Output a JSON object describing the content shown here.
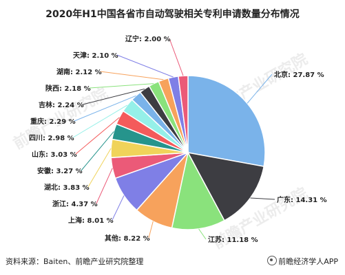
{
  "title": "2020年H1中国各省市自动驾驶相关专利申请数量分布情况",
  "footer": {
    "source": "资料来源：Baiten、前瞻产业研究院整理",
    "brand": "前瞻经济学人APP"
  },
  "watermark": "前瞻产业研究院",
  "chart_data": {
    "type": "pie",
    "title": "2020年H1中国各省市自动驾驶相关专利申请数量分布情况",
    "unit": "%",
    "slices": [
      {
        "label": "北京",
        "value": 27.87,
        "color": "#7ab3ea"
      },
      {
        "label": "广东",
        "value": 14.31,
        "color": "#3d3d42"
      },
      {
        "label": "江苏",
        "value": 11.18,
        "color": "#8ae27c"
      },
      {
        "label": "其他",
        "value": 8.22,
        "color": "#f7a25c"
      },
      {
        "label": "上海",
        "value": 8.01,
        "color": "#7f7fe6"
      },
      {
        "label": "浙江",
        "value": 4.37,
        "color": "#eb5a78"
      },
      {
        "label": "湖北",
        "value": 3.83,
        "color": "#f0d35a"
      },
      {
        "label": "安徽",
        "value": 3.27,
        "color": "#26948c"
      },
      {
        "label": "山东",
        "value": 3.03,
        "color": "#f45b5b"
      },
      {
        "label": "四川",
        "value": 2.98,
        "color": "#95f0e8"
      },
      {
        "label": "重庆",
        "value": 2.29,
        "color": "#7ab3ea"
      },
      {
        "label": "吉林",
        "value": 2.24,
        "color": "#3d3d42"
      },
      {
        "label": "陕西",
        "value": 2.18,
        "color": "#8ae27c"
      },
      {
        "label": "湖南",
        "value": 2.12,
        "color": "#f7a25c"
      },
      {
        "label": "天津",
        "value": 2.1,
        "color": "#7f7fe6"
      },
      {
        "label": "辽宁",
        "value": 2.0,
        "color": "#eb5a78"
      }
    ]
  }
}
